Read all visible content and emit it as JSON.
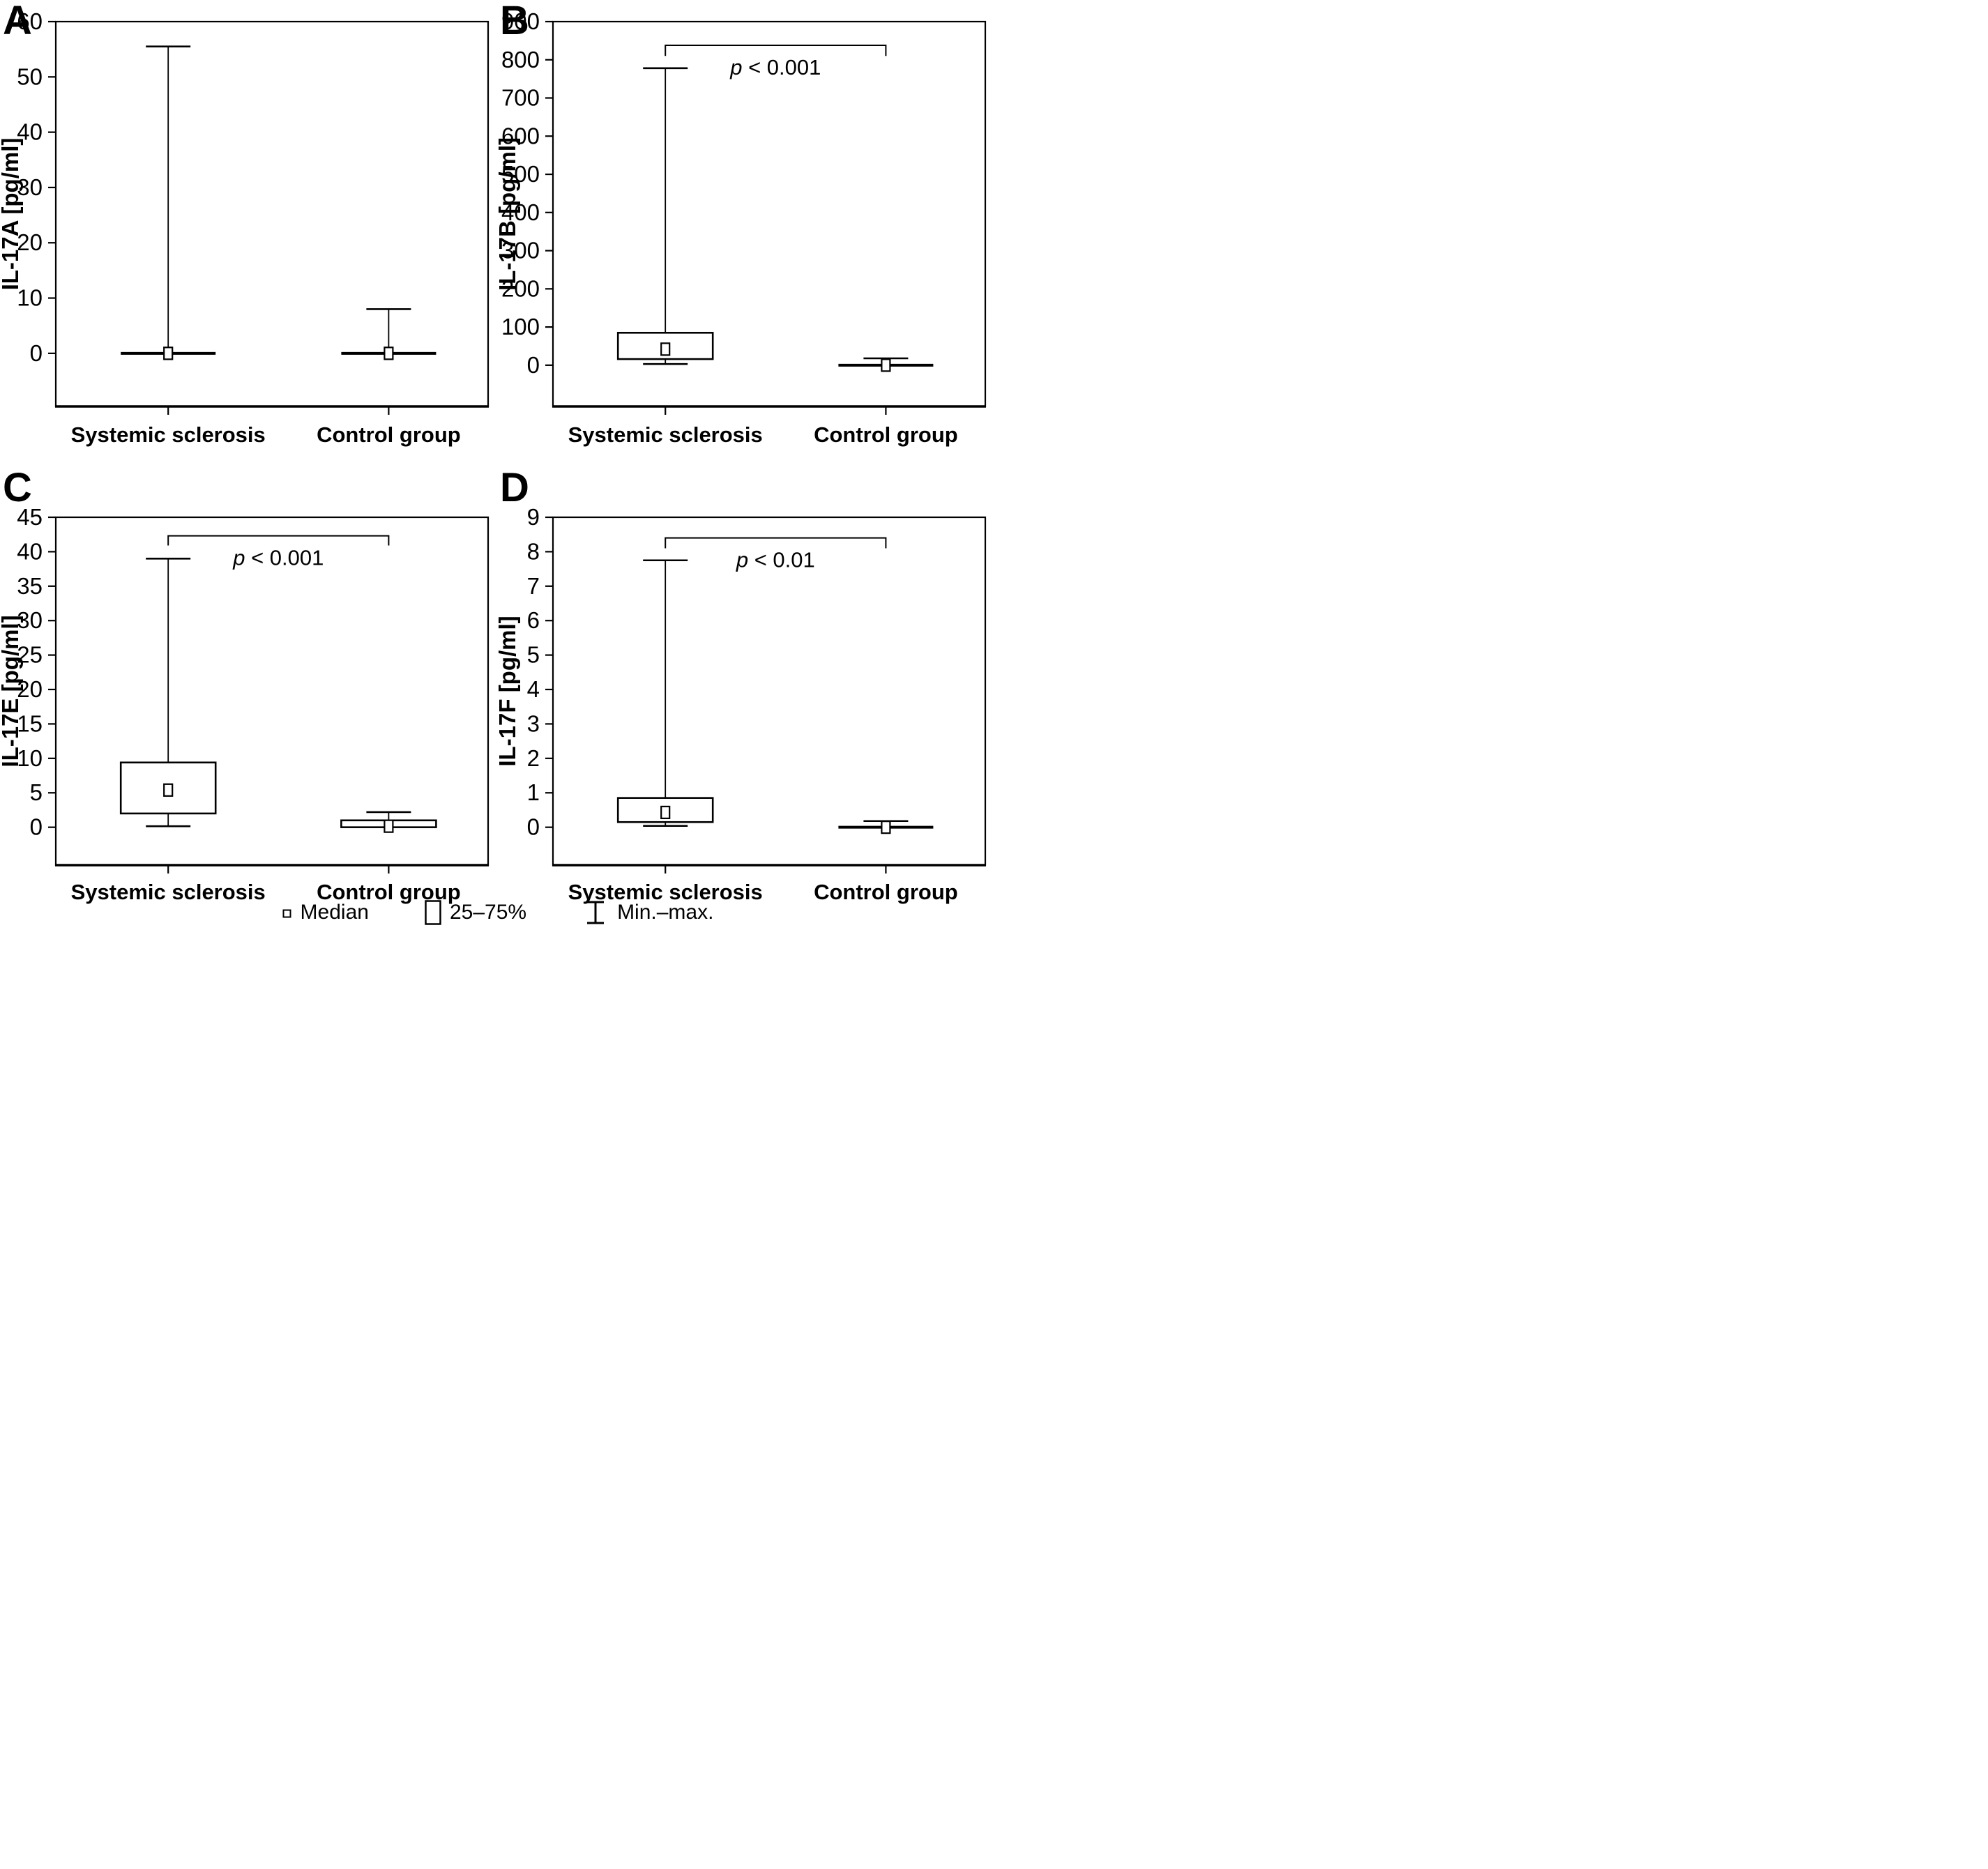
{
  "figure": {
    "background": "#ffffff",
    "stroke_color": "#000000",
    "box_fill": "#ffffff",
    "categories": [
      "Systemic sclerosis",
      "Control group"
    ],
    "legend": {
      "items": [
        {
          "symbol": "median-square-icon",
          "label": "Median"
        },
        {
          "symbol": "box-25-75-icon",
          "label": "25–75%"
        },
        {
          "symbol": "min-max-whisker-icon",
          "label": "Min.–max."
        }
      ]
    }
  },
  "chart_data": [
    {
      "type": "box",
      "panel_label": "A",
      "ylabel": "IL-17A [pg/ml]",
      "xlabel": "",
      "yticks": [
        0,
        10,
        20,
        30,
        40,
        50,
        60
      ],
      "ylim": [
        -9.6,
        60
      ],
      "grid": false,
      "categories": [
        "Systemic sclerosis",
        "Control group"
      ],
      "series": [
        {
          "name": "Systemic sclerosis",
          "median": 0,
          "q1": 0,
          "q3": 0,
          "min": 0,
          "max": 55.5
        },
        {
          "name": "Control group",
          "median": 0,
          "q1": 0,
          "q3": 0,
          "min": 0,
          "max": 8
        }
      ],
      "significance": null
    },
    {
      "type": "box",
      "panel_label": "B",
      "ylabel": "IL-17B [pg/ml]",
      "xlabel": "",
      "yticks": [
        0,
        100,
        200,
        300,
        400,
        500,
        600,
        700,
        800,
        900
      ],
      "ylim": [
        -108,
        900
      ],
      "grid": false,
      "categories": [
        "Systemic sclerosis",
        "Control group"
      ],
      "series": [
        {
          "name": "Systemic sclerosis",
          "median": 42,
          "q1": 16,
          "q3": 85,
          "min": 3,
          "max": 778
        },
        {
          "name": "Control group",
          "median": 0,
          "q1": 0,
          "q3": 0,
          "min": 0,
          "max": 18
        }
      ],
      "significance": {
        "label": "p < 0.001",
        "bracket_y": 838,
        "tick_to": 810
      }
    },
    {
      "type": "box",
      "panel_label": "C",
      "ylabel": "IL-17E [pg/ml]",
      "xlabel": "",
      "yticks": [
        0,
        5,
        10,
        15,
        20,
        25,
        30,
        35,
        40,
        45
      ],
      "ylim": [
        -5.5,
        45
      ],
      "grid": false,
      "categories": [
        "Systemic sclerosis",
        "Control group"
      ],
      "series": [
        {
          "name": "Systemic sclerosis",
          "median": 5.4,
          "q1": 2,
          "q3": 9.4,
          "min": 0.15,
          "max": 39
        },
        {
          "name": "Control group",
          "median": 0.15,
          "q1": 0,
          "q3": 1,
          "min": 0,
          "max": 2.2
        }
      ],
      "significance": {
        "label": "p < 0.001",
        "bracket_y": 42.3,
        "tick_to": 40.9
      }
    },
    {
      "type": "box",
      "panel_label": "D",
      "ylabel": "IL-17F [pg/ml]",
      "xlabel": "",
      "yticks": [
        0,
        1,
        2,
        3,
        4,
        5,
        6,
        7,
        8,
        9
      ],
      "ylim": [
        -1.1,
        9
      ],
      "grid": false,
      "categories": [
        "Systemic sclerosis",
        "Control group"
      ],
      "series": [
        {
          "name": "Systemic sclerosis",
          "median": 0.43,
          "q1": 0.15,
          "q3": 0.85,
          "min": 0.04,
          "max": 7.75
        },
        {
          "name": "Control group",
          "median": 0,
          "q1": 0,
          "q3": 0,
          "min": 0,
          "max": 0.18
        }
      ],
      "significance": {
        "label": "p < 0.01",
        "bracket_y": 8.4,
        "tick_to": 8.1
      }
    }
  ]
}
